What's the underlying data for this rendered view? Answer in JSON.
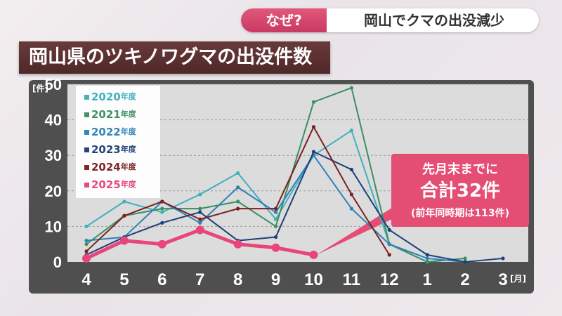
{
  "header": {
    "why_label": "なぜ?",
    "topic": "岡山でクマの出没減少"
  },
  "title": "岡山県のツキノワグマの出没件数",
  "callout": {
    "line1": "先月末までに",
    "line2": "合計32件",
    "line3": "(前年同時期は113件)"
  },
  "chart_data": {
    "type": "line",
    "ylabel": "[件]",
    "xunit": "[月]",
    "ylim": [
      0,
      50
    ],
    "yticks": [
      0,
      10,
      20,
      30,
      40,
      50
    ],
    "categories": [
      "4",
      "5",
      "6",
      "7",
      "8",
      "9",
      "10",
      "11",
      "12",
      "1",
      "2",
      "3"
    ],
    "grid": true,
    "legend_position": "top-left",
    "series": [
      {
        "name": "2020年度",
        "year": "2020",
        "suffix": "年度",
        "color": "#3fb0bc",
        "values": [
          10,
          17,
          14,
          19,
          25,
          12,
          30,
          37,
          5,
          0,
          1,
          null
        ]
      },
      {
        "name": "2021年度",
        "year": "2021",
        "suffix": "年度",
        "color": "#3b8f63",
        "values": [
          5,
          13,
          15,
          15,
          17,
          10,
          45,
          49,
          5,
          0,
          1,
          null
        ]
      },
      {
        "name": "2022年度",
        "year": "2022",
        "suffix": "年度",
        "color": "#2e82b8",
        "values": [
          6,
          7,
          17,
          11,
          21,
          14,
          30,
          15,
          5,
          1,
          0,
          null
        ]
      },
      {
        "name": "2023年度",
        "year": "2023",
        "suffix": "年度",
        "color": "#1d3f78",
        "values": [
          2,
          7,
          11,
          14,
          6,
          7,
          31,
          26,
          9,
          2,
          0,
          1
        ]
      },
      {
        "name": "2024年度",
        "year": "2024",
        "suffix": "年度",
        "color": "#7a2020",
        "values": [
          3,
          13,
          17,
          12,
          15,
          15,
          38,
          19,
          2,
          null,
          null,
          null
        ]
      },
      {
        "name": "2025年度",
        "year": "2025",
        "suffix": "年度",
        "color": "#e8467a",
        "values": [
          1,
          6,
          5,
          9,
          5,
          4,
          2,
          null,
          null,
          null,
          null,
          null
        ]
      }
    ]
  }
}
